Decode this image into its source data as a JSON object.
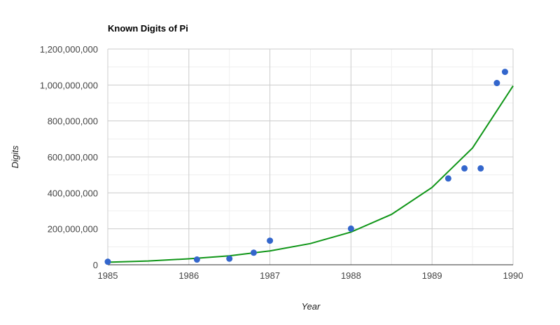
{
  "chart_data": {
    "type": "scatter",
    "title": "Known Digits of Pi",
    "xlabel": "Year",
    "ylabel": "Digits",
    "xlim": [
      1985,
      1990
    ],
    "ylim": [
      0,
      1200000000
    ],
    "x_ticks": [
      1985,
      1986,
      1987,
      1988,
      1989,
      1990
    ],
    "x_tick_labels": [
      "1985",
      "1986",
      "1987",
      "1988",
      "1989",
      "1990"
    ],
    "y_ticks": [
      0,
      200000000,
      400000000,
      600000000,
      800000000,
      1000000000,
      1200000000
    ],
    "y_tick_labels": [
      "0",
      "200,000,000",
      "400,000,000",
      "600,000,000",
      "800,000,000",
      "1,000,000,000",
      "1,200,000,000"
    ],
    "grid": true,
    "point_color": "#3366cc",
    "trendline_color": "#109618",
    "points": [
      {
        "x": 1985.0,
        "y": 17000000
      },
      {
        "x": 1986.1,
        "y": 29000000
      },
      {
        "x": 1986.5,
        "y": 34000000
      },
      {
        "x": 1986.8,
        "y": 67000000
      },
      {
        "x": 1987.0,
        "y": 134000000
      },
      {
        "x": 1988.0,
        "y": 201000000
      },
      {
        "x": 1989.2,
        "y": 480000000
      },
      {
        "x": 1989.4,
        "y": 536000000
      },
      {
        "x": 1989.6,
        "y": 536000000
      },
      {
        "x": 1989.8,
        "y": 1011000000
      },
      {
        "x": 1989.9,
        "y": 1073000000
      }
    ],
    "trendline": {
      "type": "exponential",
      "x": [
        1985.0,
        1985.5,
        1986.0,
        1986.5,
        1987.0,
        1987.5,
        1988.0,
        1988.5,
        1989.0,
        1989.5,
        1990.0
      ],
      "y": [
        14000000,
        21000000,
        33000000,
        50000000,
        77000000,
        118000000,
        182000000,
        280000000,
        430000000,
        650000000,
        995000000
      ]
    }
  }
}
